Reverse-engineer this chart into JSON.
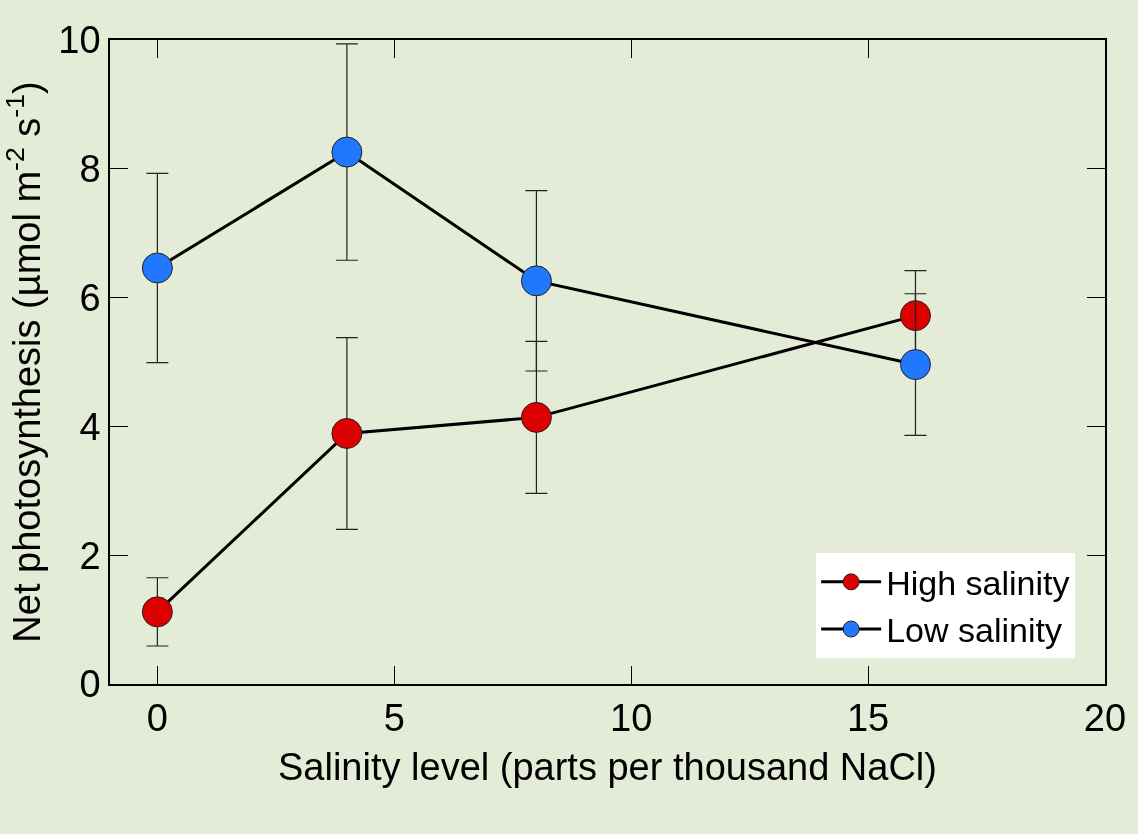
{
  "chart_data": {
    "type": "line",
    "xlabel": "Salinity level (parts per thousand NaCl)",
    "ylabel": "Net photosynthesis (µmol m$^{-2}$ s$^{-1}$)",
    "x": [
      0,
      4,
      8,
      16
    ],
    "series": [
      {
        "name": "High salinity",
        "color": "#dd0000",
        "values": [
          1.12,
          3.89,
          4.14,
          5.72
        ],
        "errors": [
          0.53,
          1.49,
          1.18,
          0.7
        ]
      },
      {
        "name": "Low salinity",
        "color": "#2277ff",
        "values": [
          6.46,
          8.26,
          6.26,
          4.96
        ],
        "errors": [
          1.47,
          1.68,
          1.4,
          1.1
        ]
      }
    ],
    "xlim": [
      -1,
      20
    ],
    "xticks": [
      0,
      5,
      10,
      15,
      20
    ],
    "ylim": [
      0,
      10
    ],
    "yticks": [
      0,
      2,
      4,
      6,
      8,
      10
    ],
    "marker": "circle",
    "line_style": "solid",
    "legend": "bottom right",
    "grid": false
  }
}
